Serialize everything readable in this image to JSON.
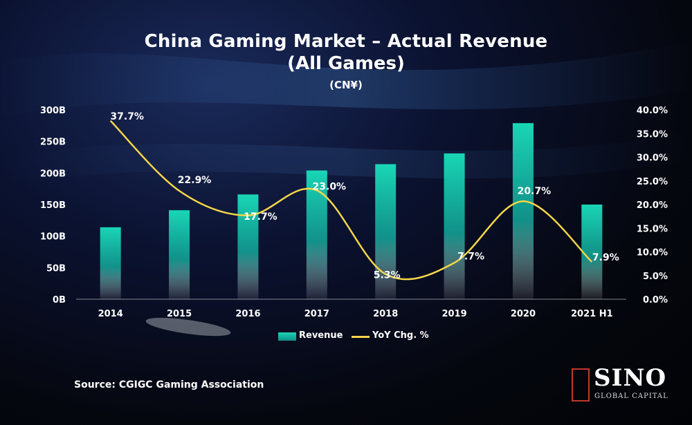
{
  "chart_data": {
    "type": "bar",
    "title": "China Gaming Market – Actual Revenue",
    "subtitle": "(All Games)",
    "unit": "(CN¥)",
    "categories": [
      "2014",
      "2015",
      "2016",
      "2017",
      "2018",
      "2019",
      "2020",
      "2021 H1"
    ],
    "series": [
      {
        "name": "Revenue",
        "type": "bar",
        "axis": "left",
        "values": [
          114,
          141,
          166,
          204,
          214,
          231,
          279,
          150
        ]
      },
      {
        "name": "YoY Chg. %",
        "type": "line",
        "axis": "right",
        "values": [
          37.7,
          22.9,
          17.7,
          23.0,
          5.3,
          7.7,
          20.7,
          7.9
        ],
        "labels": [
          "37.7%",
          "22.9%",
          "17.7%",
          "23.0%",
          "5.3%",
          "7.7%",
          "20.7%",
          "7.9%"
        ]
      }
    ],
    "left_axis": {
      "ylim": [
        0,
        300
      ],
      "ticks": [
        "0B",
        "50B",
        "100B",
        "150B",
        "200B",
        "250B",
        "300B"
      ]
    },
    "right_axis": {
      "ylim": [
        0,
        40
      ],
      "ticks": [
        "0.0%",
        "5.0%",
        "10.0%",
        "15.0%",
        "20.0%",
        "25.0%",
        "30.0%",
        "35.0%",
        "40.0%"
      ]
    },
    "grid": false,
    "legend_position": "bottom-center",
    "colors": {
      "bar": "#19d6b6",
      "line": "#f6d64a"
    }
  },
  "legend": {
    "revenue": "Revenue",
    "yoy": "YoY Chg. %"
  },
  "source": "Source: CGIGC Gaming Association",
  "logo": {
    "name": "SINO",
    "sub": "GLOBAL CAPITAL"
  }
}
